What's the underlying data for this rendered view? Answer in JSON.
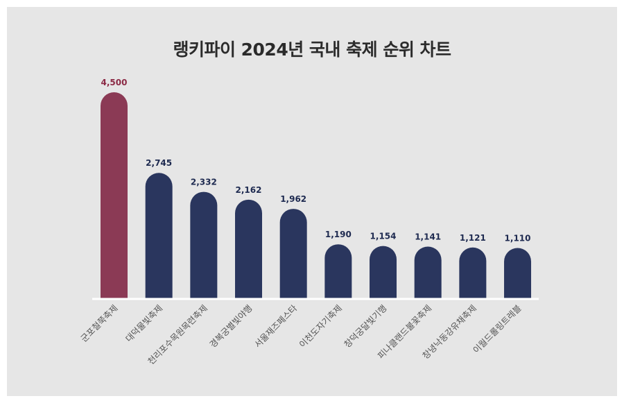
{
  "chart_data": {
    "type": "bar",
    "title": "랭키파이 2024년 국내 축제 순위 차트",
    "xlabel": "",
    "ylabel": "",
    "ylim": [
      0,
      4500
    ],
    "grid": false,
    "legend": "none",
    "categories": [
      "군포철쭉축제",
      "대덕물빛축제",
      "천리포수목원목련축제",
      "경복궁별빛야행",
      "서울재즈페스타",
      "이천도자기축제",
      "창덕궁달빛기행",
      "피나클랜드불꽃축제",
      "창녕낙동강유채축제",
      "이월드롤링트레블"
    ],
    "values": [
      4500,
      2745,
      2332,
      2162,
      1962,
      1190,
      1154,
      1141,
      1121,
      1110
    ],
    "value_labels": [
      "4,500",
      "2,745",
      "2,332",
      "2,162",
      "1,962",
      "1,190",
      "1,154",
      "1,141",
      "1,121",
      "1,110"
    ],
    "colors": {
      "highlight": "#8b3a55",
      "bar": "#2a365e",
      "highlight_label": "#8b2a45",
      "label": "#1e2a50",
      "baseline": "#ffffff"
    },
    "highlight_index": 0
  }
}
